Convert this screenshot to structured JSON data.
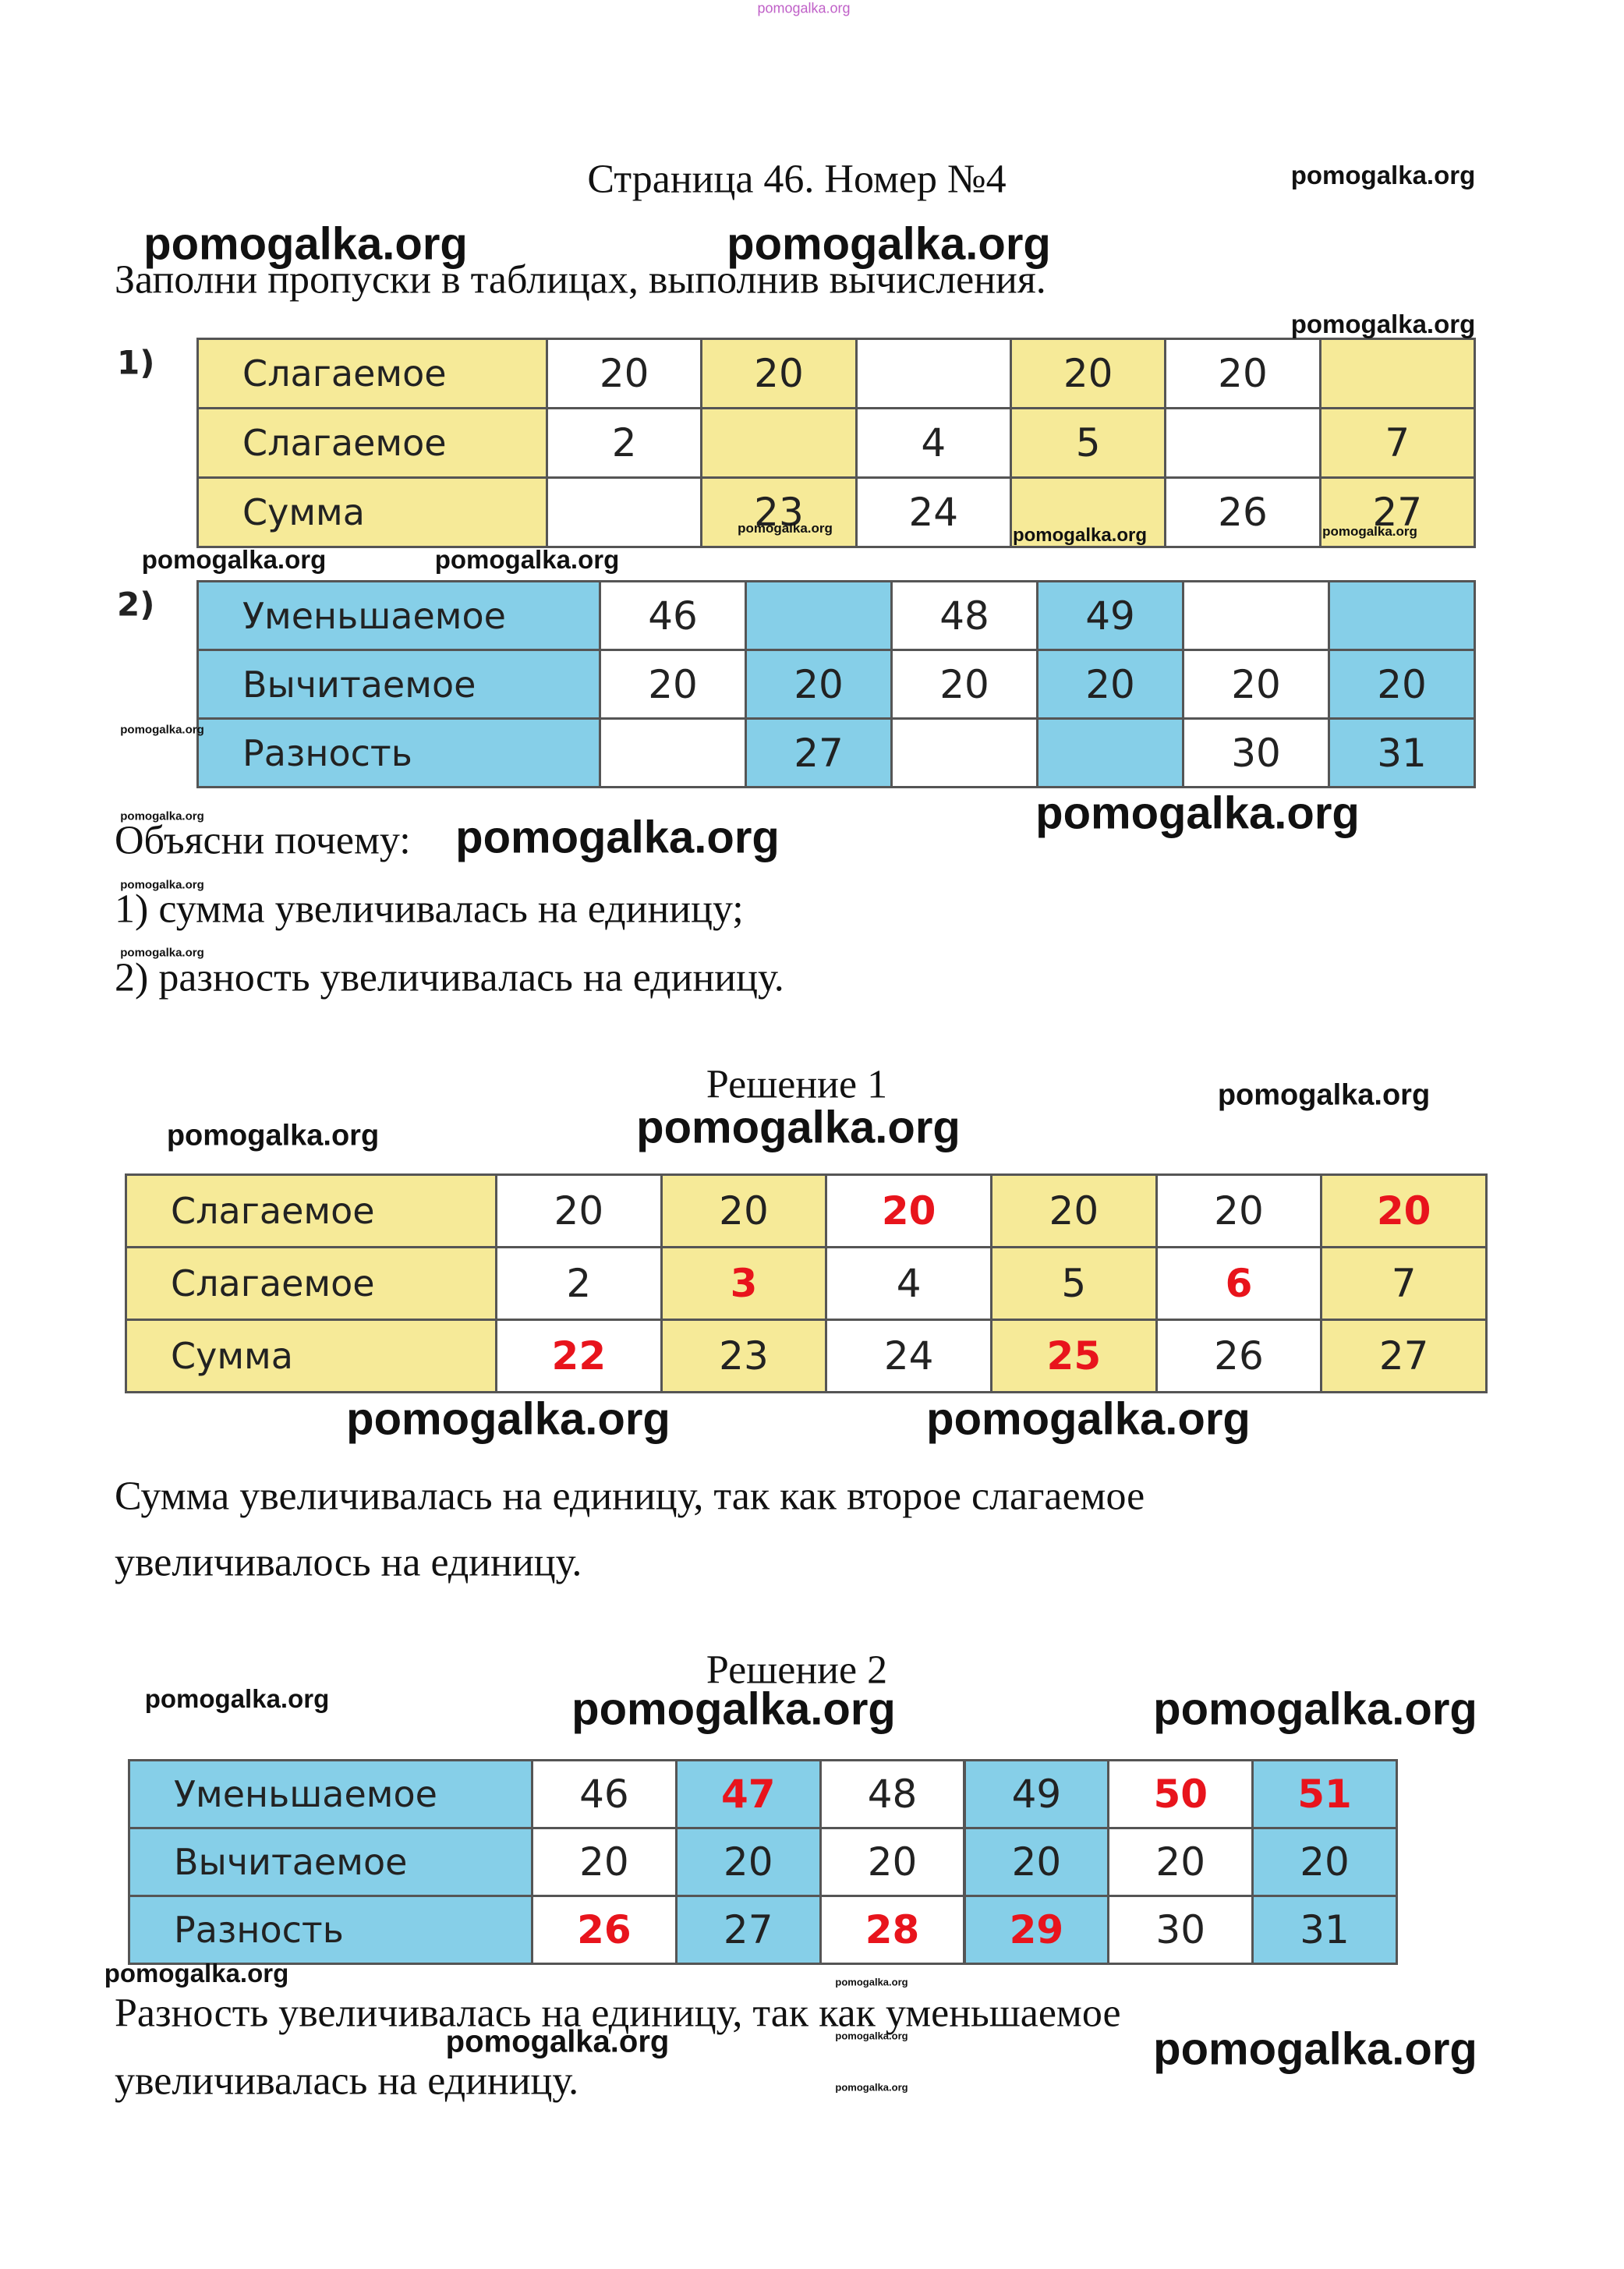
{
  "header": {
    "title": "Страница 46. Номер №4"
  },
  "task": "Заполни пропуски в таблицах, выполнив вычисления.",
  "table1": {
    "marker": "1)",
    "rows": [
      [
        "Слагаемое",
        "20",
        "20",
        null,
        "20",
        "20",
        null
      ],
      [
        "Слагаемое",
        "2",
        null,
        "4",
        "5",
        null,
        "7"
      ],
      [
        "Сумма",
        null,
        "23",
        "24",
        null,
        "26",
        "27"
      ]
    ]
  },
  "table2": {
    "marker": "2)",
    "rows": [
      [
        "Уменьшаемое",
        "46",
        null,
        "48",
        "49",
        null,
        null
      ],
      [
        "Вычитаемое",
        "20",
        "20",
        "20",
        "20",
        "20",
        "20"
      ],
      [
        "Разность",
        null,
        "27",
        null,
        null,
        "30",
        "31"
      ]
    ]
  },
  "explain": {
    "heading": "Объясни почему:",
    "lines": [
      "1) сумма увеличивалась на единицу;",
      "2) разность увеличивалась на единицу."
    ]
  },
  "solution1": {
    "title": "Решение 1",
    "rows": [
      [
        "Слагаемое",
        "20",
        "20",
        "20",
        "20",
        "20",
        "20"
      ],
      [
        "Слагаемое",
        "2",
        "3",
        "4",
        "5",
        "6",
        "7"
      ],
      [
        "Сумма",
        "22",
        "23",
        "24",
        "25",
        "26",
        "27"
      ]
    ],
    "lines": [
      "Сумма увеличивалась на единицу, так как второе слагаемое",
      "увеличивалось на единицу."
    ]
  },
  "solution2": {
    "title": "Решение 2",
    "rows": [
      [
        "Уменьшаемое",
        "46",
        "47",
        "48",
        "49",
        "50",
        "51"
      ],
      [
        "Вычитаемое",
        "20",
        "20",
        "20",
        "20",
        "20",
        "20"
      ],
      [
        "Разность",
        "26",
        "27",
        "28",
        "29",
        "30",
        "31"
      ]
    ],
    "lines": [
      "Разность увеличивалась на единицу, так как уменьшаемое",
      "увеличивалась на единицу."
    ]
  },
  "watermarks": [
    "pomogalka.org",
    "pomogalka.org",
    "pomogalka.org",
    "pomogalka.org",
    "pomogalka.org",
    "pomogalka.org",
    "pomogalka.org",
    "pomogalka.org",
    "pomogalka.org",
    "pomogalka.org",
    "pomogalka.org",
    "pomogalka.org",
    "pomogalka.org",
    "pomogalka.org",
    "pomogalka.org",
    "pomogalka.org",
    "pomogalka.org",
    "pomogalka.org",
    "pomogalka.org",
    "pomogalka.org",
    "pomogalka.org",
    "pomogalka.org",
    "pomogalka.org",
    "pomogalka.org",
    "pomogalka.org",
    "pomogalka.org",
    "pomogalka.org",
    "pomogalka.org",
    "pomogalka.org",
    "pomogalka.org"
  ]
}
